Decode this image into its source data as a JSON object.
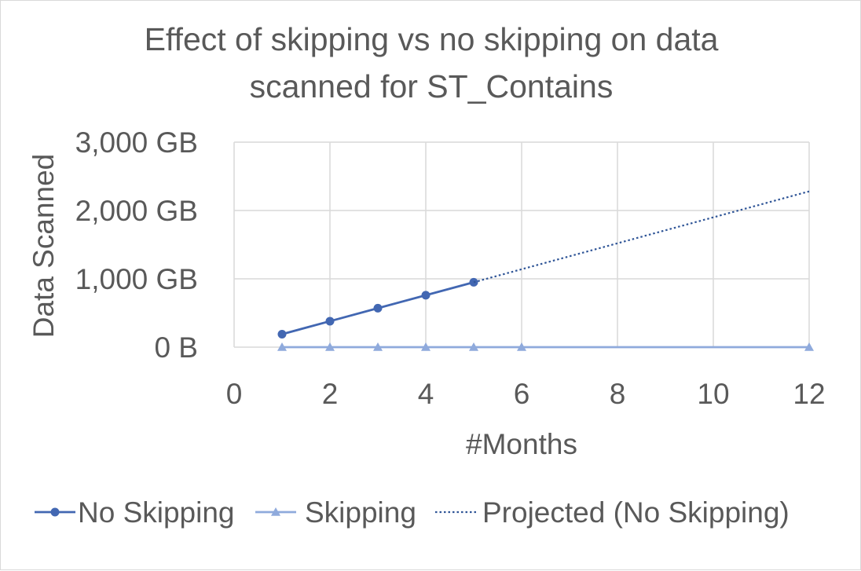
{
  "chart_data": {
    "type": "line",
    "title_lines": [
      "Effect of skipping vs no skipping on data",
      "scanned for ST_Contains"
    ],
    "xlabel": "#Months",
    "ylabel": "Data Scanned",
    "xlim": [
      0,
      12
    ],
    "ylim": [
      0,
      3000
    ],
    "x_ticks": [
      0,
      2,
      4,
      6,
      8,
      10,
      12
    ],
    "y_ticks": [
      0,
      1000,
      2000,
      3000
    ],
    "y_tick_labels": [
      "0 B",
      "1,000 GB",
      "2,000 GB",
      "3,000 GB"
    ],
    "grid": true,
    "legend_position": "bottom",
    "series": [
      {
        "name": "No Skipping",
        "color": "#4267b2",
        "marker": "circle",
        "line_style": "solid",
        "x": [
          1,
          2,
          3,
          4,
          5
        ],
        "y": [
          190,
          380,
          570,
          760,
          950
        ]
      },
      {
        "name": "Skipping",
        "color": "#8faadc",
        "marker": "triangle",
        "line_style": "solid",
        "x": [
          1,
          2,
          3,
          4,
          5,
          6,
          12
        ],
        "y": [
          0,
          0,
          0,
          0,
          0,
          0,
          0
        ]
      },
      {
        "name": "Projected (No Skipping)",
        "color": "#2f5597",
        "marker": "none",
        "line_style": "dotted",
        "x": [
          5,
          12
        ],
        "y": [
          950,
          2280
        ]
      }
    ]
  }
}
